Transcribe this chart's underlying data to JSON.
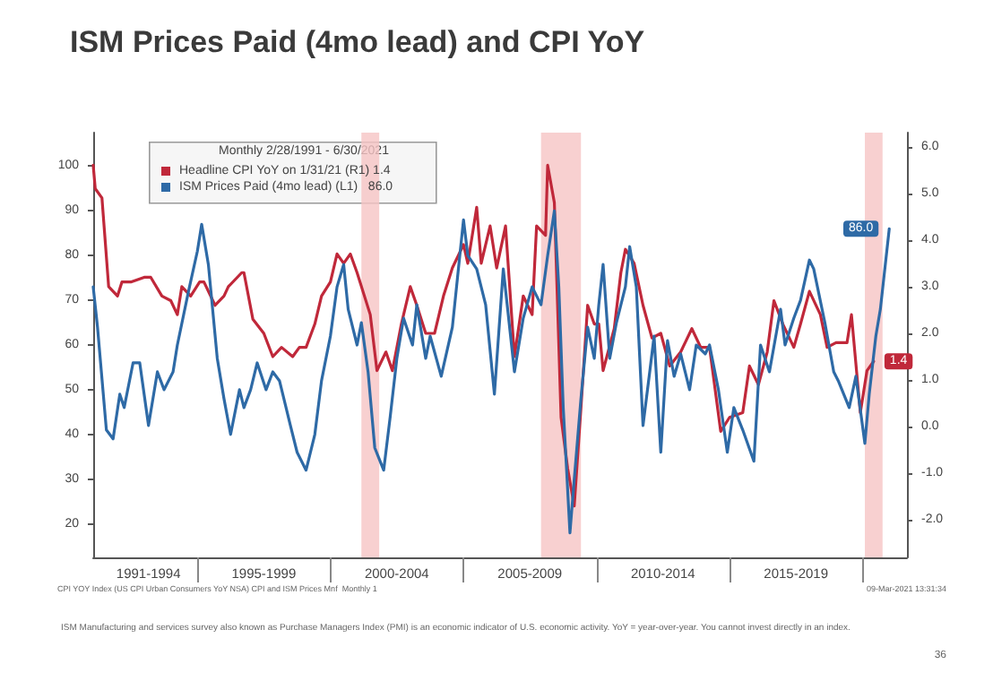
{
  "chart_data": {
    "type": "line",
    "title": "ISM Prices Paid (4mo lead) and CPI YoY",
    "legend_title": "Monthly 2/28/1991 - 6/30/2021",
    "legend": "top",
    "marker": "none",
    "line_style": "solid",
    "xlim": [
      "1991-02",
      "2021-09"
    ],
    "xticks": [
      {
        "value": "1995-01",
        "label": null
      },
      {
        "value": "2000-01",
        "label": null
      },
      {
        "value": "2005-01",
        "label": null
      },
      {
        "value": "2010-01",
        "label": null
      },
      {
        "value": "2015-01",
        "label": null
      },
      {
        "value": "2020-01",
        "label": null
      },
      {
        "value": "1993-03",
        "label": "1991-1994"
      },
      {
        "value": "1997-07",
        "label": "1995-1999"
      },
      {
        "value": "2002-07",
        "label": "2000-2004"
      },
      {
        "value": "2007-07",
        "label": "2005-2009"
      },
      {
        "value": "2012-07",
        "label": "2010-2014"
      },
      {
        "value": "2017-07",
        "label": "2015-2019"
      }
    ],
    "ylim": [
      12.5,
      107.5
    ],
    "yticks": [
      20,
      30,
      40,
      50,
      60,
      70,
      80,
      90,
      100
    ],
    "y2lim": [
      -2.8,
      6.3
    ],
    "y2ticks": [
      {
        "value": -2,
        "label": "-2.0"
      },
      {
        "value": -1,
        "label": "-1.0"
      },
      {
        "value": 0,
        "label": "0.0"
      },
      {
        "value": 1,
        "label": "1.0"
      },
      {
        "value": 2,
        "label": "2.0"
      },
      {
        "value": 3,
        "label": "3.0"
      },
      {
        "value": 4,
        "label": "4.0"
      },
      {
        "value": 5,
        "label": "5.0"
      },
      {
        "value": 6,
        "label": "6.0"
      }
    ],
    "bands": [
      {
        "axis": "x",
        "from": "2001-03",
        "to": "2001-11",
        "label": null,
        "color": "#f6c4c4"
      },
      {
        "axis": "x",
        "from": "2007-12",
        "to": "2009-06",
        "label": null,
        "color": "#f6c4c4"
      },
      {
        "axis": "x",
        "from": "2020-02",
        "to": "2020-10",
        "label": null,
        "color": "#f6c4c4"
      }
    ],
    "series": [
      {
        "name": "Headline CPI YoY on 1/31/21 (R1) 1.4",
        "color": "#c0283a",
        "axis": "y2",
        "x": [
          "1991-02",
          "1991-03",
          "1991-06",
          "1991-09",
          "1992-01",
          "1992-03",
          "1992-07",
          "1993-01",
          "1993-04",
          "1993-09",
          "1994-01",
          "1994-04",
          "1994-06",
          "1994-10",
          "1995-02",
          "1995-04",
          "1995-09",
          "1996-01",
          "1996-03",
          "1996-09",
          "1996-10",
          "1997-02",
          "1997-07",
          "1997-11",
          "1998-03",
          "1998-08",
          "1998-11",
          "1999-02",
          "1999-06",
          "1999-09",
          "2000-01",
          "2000-04",
          "2000-07",
          "2000-10",
          "2001-01",
          "2001-07",
          "2001-10",
          "2002-02",
          "2002-05",
          "2002-09",
          "2003-01",
          "2003-04",
          "2003-08",
          "2003-12",
          "2004-04",
          "2004-08",
          "2005-01",
          "2005-03",
          "2005-07",
          "2005-09",
          "2006-01",
          "2006-04",
          "2006-08",
          "2006-12",
          "2007-04",
          "2007-08",
          "2007-10",
          "2008-02",
          "2008-03",
          "2008-06",
          "2008-09",
          "2008-12",
          "2009-03",
          "2009-06",
          "2009-09",
          "2009-12",
          "2010-02",
          "2010-04",
          "2010-09",
          "2010-12",
          "2011-02",
          "2011-06",
          "2011-10",
          "2012-02",
          "2012-06",
          "2012-10",
          "2013-03",
          "2013-08",
          "2013-12",
          "2014-04",
          "2014-09",
          "2015-01",
          "2015-07",
          "2015-10",
          "2016-02",
          "2016-06",
          "2016-09",
          "2017-01",
          "2017-06",
          "2017-09",
          "2018-01",
          "2018-06",
          "2018-09",
          "2019-01",
          "2019-06",
          "2019-08",
          "2019-12",
          "2020-03",
          "2020-06"
        ],
        "values": [
          5.6,
          5.1,
          4.9,
          3.0,
          2.8,
          3.1,
          3.1,
          3.2,
          3.2,
          2.8,
          2.7,
          2.4,
          3.0,
          2.8,
          3.1,
          3.1,
          2.6,
          2.8,
          3.0,
          3.3,
          3.3,
          2.3,
          2.0,
          1.5,
          1.7,
          1.5,
          1.7,
          1.7,
          2.2,
          2.8,
          3.1,
          3.7,
          3.5,
          3.7,
          3.3,
          2.4,
          1.2,
          1.6,
          1.2,
          2.2,
          3.0,
          2.6,
          2.0,
          2.0,
          2.8,
          3.4,
          3.9,
          3.5,
          4.7,
          3.5,
          4.3,
          3.4,
          4.3,
          1.5,
          2.8,
          2.4,
          4.3,
          4.1,
          5.6,
          4.8,
          0.2,
          -0.9,
          -1.7,
          0.4,
          2.6,
          2.2,
          2.2,
          1.2,
          2.1,
          3.3,
          3.8,
          3.5,
          2.6,
          1.9,
          2.0,
          1.3,
          1.6,
          2.1,
          1.7,
          1.7,
          -0.1,
          0.2,
          0.3,
          1.3,
          0.9,
          1.6,
          2.7,
          2.2,
          1.7,
          2.2,
          2.9,
          2.4,
          1.7,
          1.8,
          1.8,
          2.4,
          0.3,
          1.2,
          1.4
        ],
        "value_labels": [
          null,
          null,
          null,
          null,
          null,
          null,
          null,
          null,
          null,
          null,
          null,
          null,
          null,
          null,
          null,
          null,
          null,
          null,
          null,
          null,
          null,
          null,
          null,
          null,
          null,
          null,
          null,
          null,
          null,
          null,
          null,
          null,
          null,
          null,
          null,
          null,
          null,
          null,
          null,
          null,
          null,
          null,
          null,
          null,
          null,
          null,
          null,
          null,
          null,
          null,
          null,
          null,
          null,
          null,
          null,
          null,
          null,
          null,
          null,
          null,
          null,
          null,
          null,
          null,
          null,
          null,
          null,
          null,
          null,
          null,
          null,
          null,
          null,
          null,
          null,
          null,
          null,
          null,
          null,
          null,
          null,
          null,
          null,
          null,
          null,
          null,
          null,
          null,
          null,
          null,
          null,
          null,
          null,
          null,
          null,
          null,
          null,
          null,
          "1.4"
        ]
      },
      {
        "name": "ISM Prices Paid (4mo lead) (L1)   86.0",
        "color": "#2e6aa6",
        "x": [
          "1991-02",
          "1991-04",
          "1991-08",
          "1991-11",
          "1992-02",
          "1992-04",
          "1992-08",
          "1992-11",
          "1993-03",
          "1993-07",
          "1993-10",
          "1994-02",
          "1994-04",
          "1994-09",
          "1995-01",
          "1995-03",
          "1995-06",
          "1995-10",
          "1996-01",
          "1996-04",
          "1996-08",
          "1996-10",
          "1997-01",
          "1997-04",
          "1997-08",
          "1997-11",
          "1998-02",
          "1998-07",
          "1998-10",
          "1999-02",
          "1999-06",
          "1999-09",
          "2000-01",
          "2000-04",
          "2000-07",
          "2000-09",
          "2001-01",
          "2001-03",
          "2001-06",
          "2001-09",
          "2002-01",
          "2002-04",
          "2002-07",
          "2002-10",
          "2003-02",
          "2003-04",
          "2003-08",
          "2003-10",
          "2004-03",
          "2004-08",
          "2005-01",
          "2005-03",
          "2005-07",
          "2005-11",
          "2006-03",
          "2006-07",
          "2006-12",
          "2007-04",
          "2007-08",
          "2007-12",
          "2008-03",
          "2008-06",
          "2008-08",
          "2008-10",
          "2009-01",
          "2009-03",
          "2009-06",
          "2009-09",
          "2009-12",
          "2010-02",
          "2010-04",
          "2010-07",
          "2010-10",
          "2011-02",
          "2011-04",
          "2011-07",
          "2011-10",
          "2012-01",
          "2012-03",
          "2012-06",
          "2012-09",
          "2012-12",
          "2013-03",
          "2013-07",
          "2013-10",
          "2014-02",
          "2014-04",
          "2014-08",
          "2014-12",
          "2015-03",
          "2015-07",
          "2015-12",
          "2016-03",
          "2016-07",
          "2016-12",
          "2017-02",
          "2017-06",
          "2017-09",
          "2018-01",
          "2018-03",
          "2018-08",
          "2018-12",
          "2019-02",
          "2019-07",
          "2019-10",
          "2020-02",
          "2020-04",
          "2020-07",
          "2020-09",
          "2021-01"
        ],
        "values": [
          73,
          64,
          41,
          39,
          49,
          46,
          56,
          56,
          42,
          54,
          50,
          54,
          60,
          72,
          81,
          87,
          78,
          57,
          48,
          40,
          50,
          46,
          50,
          56,
          50,
          54,
          52,
          42,
          36,
          32,
          40,
          52,
          62,
          73,
          78,
          68,
          60,
          65,
          54,
          37,
          32,
          44,
          57,
          66,
          60,
          69,
          57,
          62,
          53,
          64,
          88,
          80,
          77,
          69,
          49,
          77,
          54,
          66,
          73,
          69,
          80,
          90,
          73,
          46,
          18,
          30,
          48,
          64,
          57,
          69,
          78,
          57,
          65,
          73,
          82,
          73,
          42,
          54,
          62,
          36,
          61,
          53,
          58,
          50,
          60,
          58,
          60,
          50,
          36,
          46,
          41,
          34,
          60,
          54,
          68,
          60,
          66,
          70,
          79,
          77,
          65,
          54,
          52,
          46,
          53,
          38,
          49,
          62,
          68,
          86
        ],
        "value_labels": [
          null,
          null,
          null,
          null,
          null,
          null,
          null,
          null,
          null,
          null,
          null,
          null,
          null,
          null,
          null,
          null,
          null,
          null,
          null,
          null,
          null,
          null,
          null,
          null,
          null,
          null,
          null,
          null,
          null,
          null,
          null,
          null,
          null,
          null,
          null,
          null,
          null,
          null,
          null,
          null,
          null,
          null,
          null,
          null,
          null,
          null,
          null,
          null,
          null,
          null,
          null,
          null,
          null,
          null,
          null,
          null,
          null,
          null,
          null,
          null,
          null,
          null,
          null,
          null,
          null,
          null,
          null,
          null,
          null,
          null,
          null,
          null,
          null,
          null,
          null,
          null,
          null,
          null,
          null,
          null,
          null,
          null,
          null,
          null,
          null,
          null,
          null,
          null,
          null,
          null,
          null,
          null,
          null,
          null,
          null,
          null,
          null,
          null,
          null,
          null,
          null,
          null,
          null,
          null,
          null,
          null,
          null,
          null,
          null,
          "86.0"
        ]
      }
    ],
    "annotations": [
      "CPI YOY Index (US CPI Urban Consumers YoY NSA) CPI and ISM Prices Mnf  Monthly 1",
      "09-Mar-2021 13:31:34",
      "ISM Manufacturing and services survey also known as Purchase Managers Index (PMI) is an economic indicator of U.S. economic activity. YoY = year-over-year. You cannot invest directly in an index.",
      "36"
    ]
  }
}
